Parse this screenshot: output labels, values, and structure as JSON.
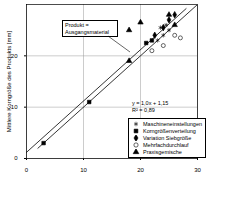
{
  "chart_data": {
    "type": "scatter",
    "y_label": "Mittlere Korngröße des Produkts [mm]",
    "annotations": [
      "Produkt = Ausgangsmaterial",
      "y = 1,0x + 1,15",
      "R² = 0,89"
    ],
    "xlim": [
      0,
      30
    ],
    "xticks": [
      0,
      10,
      20,
      30
    ],
    "ylim": [
      0,
      30
    ],
    "yticks": [
      0,
      10,
      20
    ],
    "grid": true,
    "legend": "bottom-right",
    "series": [
      {
        "name": "Maschineneinstellungen",
        "marker": "asterisk",
        "color": "#000000",
        "x": [
          23,
          23.5,
          24,
          24.5,
          25
        ],
        "values": [
          23,
          25.5,
          24,
          26,
          25
        ]
      },
      {
        "name": "Korngrößenverteilung",
        "marker": "square",
        "color": "#000000",
        "x": [
          3,
          11,
          21,
          22
        ],
        "values": [
          3,
          11,
          22.5,
          23
        ]
      },
      {
        "name": "Variation Siebgröße",
        "marker": "diamond",
        "color": "#000000",
        "x": [
          22.5,
          24,
          25,
          26
        ],
        "values": [
          24,
          25.5,
          27,
          28
        ]
      },
      {
        "name": "Mehrfachdurchlauf",
        "marker": "circle_open",
        "color": "#000000",
        "x": [
          22,
          24,
          26,
          27
        ],
        "values": [
          21,
          22,
          24,
          23.5
        ]
      },
      {
        "name": "Praxisgemische",
        "marker": "triangle",
        "color": "#000000",
        "x": [
          18,
          18,
          20,
          25,
          26
        ],
        "values": [
          19,
          25,
          26.5,
          28,
          26
        ]
      },
      {
        "type": "line",
        "line_style": "solid",
        "color": "#000000",
        "x": [
          2,
          30
        ],
        "values": [
          2,
          30
        ]
      },
      {
        "type": "line",
        "line_style": "solid",
        "color": "#000000",
        "x": [
          0,
          28
        ],
        "values": [
          1.2,
          29.2
        ]
      }
    ]
  }
}
